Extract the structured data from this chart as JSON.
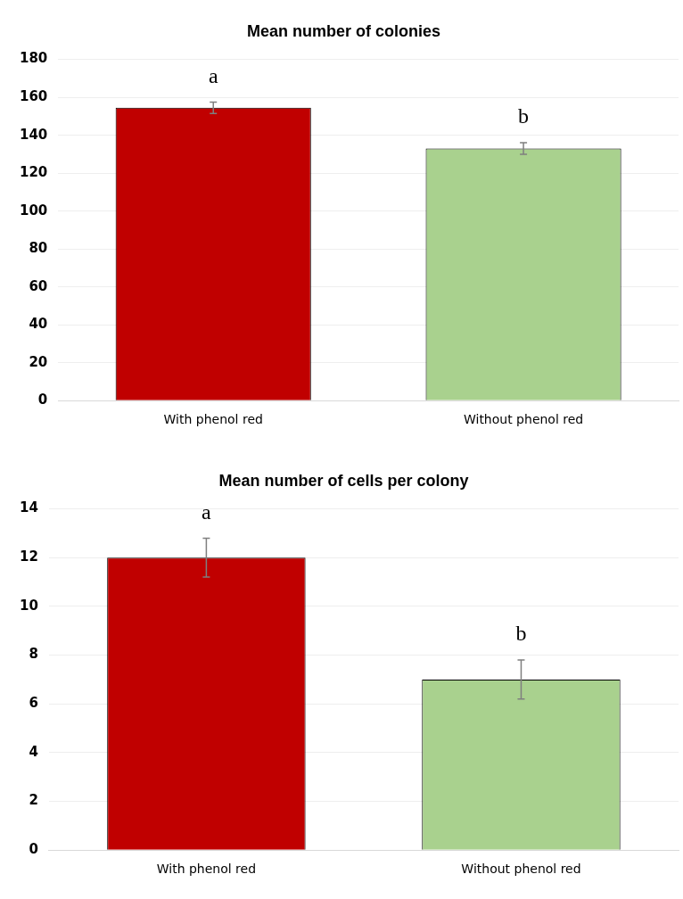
{
  "chart_data": [
    {
      "type": "bar",
      "title": "Mean number of colonies",
      "categories": [
        "With phenol red",
        "Without phenol red"
      ],
      "colors": [
        "#c00000",
        "#a9d18e"
      ],
      "values": [
        154.5,
        133
      ],
      "errors": [
        3,
        3
      ],
      "ylim": [
        0,
        180
      ],
      "yticks": [
        0,
        20,
        40,
        60,
        80,
        100,
        120,
        140,
        160,
        180
      ],
      "grid": "y",
      "legend": false,
      "annotations": [
        "a",
        "b"
      ]
    },
    {
      "type": "bar",
      "title": "Mean number of cells per colony",
      "categories": [
        "With phenol red",
        "Without phenol red"
      ],
      "colors": [
        "#c00000",
        "#a9d18e"
      ],
      "values": [
        12,
        7
      ],
      "errors": [
        0.8,
        0.8
      ],
      "ylim": [
        0,
        14
      ],
      "yticks": [
        0,
        2,
        4,
        6,
        8,
        10,
        12,
        14
      ],
      "grid": "y",
      "legend": false,
      "annotations": [
        "a",
        "b"
      ]
    }
  ]
}
